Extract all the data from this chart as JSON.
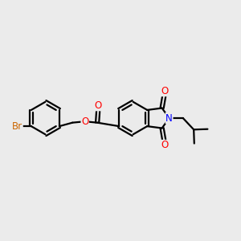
{
  "bg_color": "#ebebeb",
  "bond_color": "#000000",
  "bond_width": 1.6,
  "atom_colors": {
    "O": "#ff0000",
    "N": "#0000ff",
    "Br": "#cc6600",
    "C": "#000000"
  },
  "font_size": 8.5,
  "figsize": [
    3.0,
    3.0
  ],
  "dpi": 100
}
